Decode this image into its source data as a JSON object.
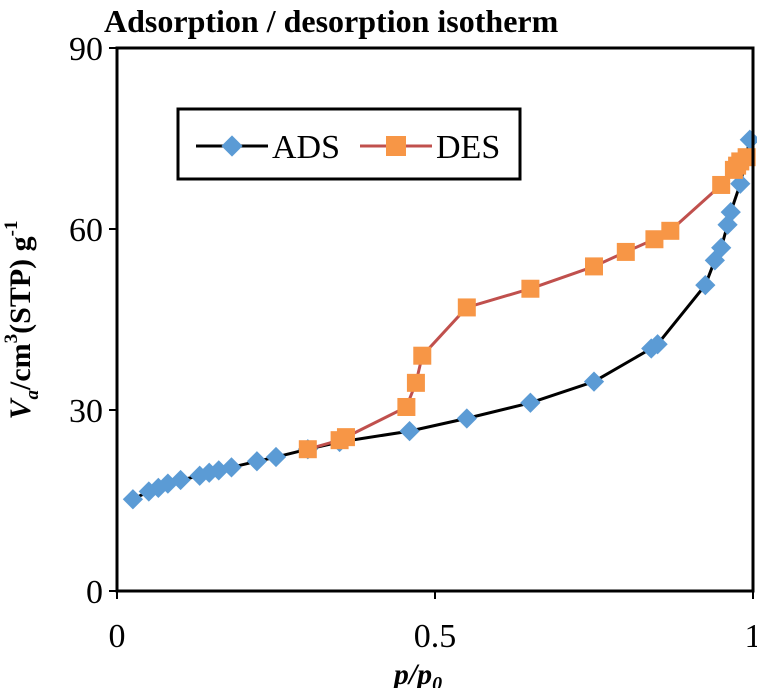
{
  "chart_data": {
    "type": "line",
    "title": "Adsorption / desorption isotherm",
    "xlabel": {
      "main": "p/p",
      "sub": "0"
    },
    "ylabel": {
      "italic": "V",
      "sub": "a",
      "mid": "/cm",
      "sup1": "3",
      "rest": "(STP) g",
      "sup2": "-1"
    },
    "xlim": [
      0,
      1
    ],
    "ylim": [
      0,
      90
    ],
    "xticks": [
      0,
      0.5,
      1
    ],
    "xtick_labels": [
      "0",
      "0.5",
      "1"
    ],
    "yticks": [
      0,
      30,
      60,
      90
    ],
    "ytick_labels": [
      "0",
      "30",
      "60",
      "90"
    ],
    "legend_position": "upper-left",
    "series": [
      {
        "name": "ADS",
        "color": "#000000",
        "marker": "diamond",
        "marker_color": "#5B9BD5",
        "x": [
          0.025,
          0.05,
          0.065,
          0.08,
          0.1,
          0.13,
          0.145,
          0.16,
          0.18,
          0.22,
          0.25,
          0.3,
          0.35,
          0.46,
          0.55,
          0.65,
          0.75,
          0.84,
          0.85,
          0.925,
          0.94,
          0.95,
          0.96,
          0.965,
          0.98,
          0.995
        ],
        "y": [
          15.2,
          16.5,
          17.1,
          17.8,
          18.4,
          19.1,
          19.6,
          20.0,
          20.5,
          21.5,
          22.2,
          23.5,
          24.7,
          26.5,
          28.6,
          31.2,
          34.7,
          40.2,
          40.9,
          50.7,
          54.8,
          56.9,
          60.7,
          62.8,
          67.5,
          74.8
        ]
      },
      {
        "name": "DES",
        "color": "#C0504D",
        "marker": "square",
        "marker_color": "#F79646",
        "x": [
          0.99,
          0.98,
          0.975,
          0.97,
          0.95,
          0.87,
          0.845,
          0.8,
          0.75,
          0.65,
          0.55,
          0.48,
          0.47,
          0.455,
          0.36,
          0.35,
          0.3
        ],
        "y": [
          71.9,
          71.2,
          70.5,
          69.8,
          67.3,
          59.7,
          58.3,
          56.2,
          53.8,
          50.1,
          47.0,
          39.0,
          34.5,
          30.5,
          25.5,
          25.0,
          23.5
        ]
      }
    ]
  }
}
